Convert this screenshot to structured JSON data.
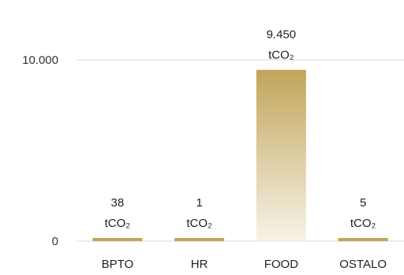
{
  "chart_data": {
    "type": "bar",
    "categories": [
      "BPTO",
      "HR",
      "FOOD",
      "OSTALO"
    ],
    "values": [
      38,
      1,
      9450,
      5
    ],
    "value_labels": [
      "38",
      "1",
      "9.450",
      "5"
    ],
    "unit_label": "tCO₂",
    "y_ticks": [
      {
        "value": 0,
        "label": "0"
      },
      {
        "value": 10000,
        "label": "10.000"
      }
    ],
    "ylim": [
      0,
      13000
    ],
    "grid": true,
    "legend": "none",
    "colors": {
      "bar_top": "#c2a55a",
      "bar_bottom": "#f7f3e8",
      "small_bar": "#c2a55a",
      "grid": "#d9d9d9",
      "text": "#222222"
    }
  }
}
